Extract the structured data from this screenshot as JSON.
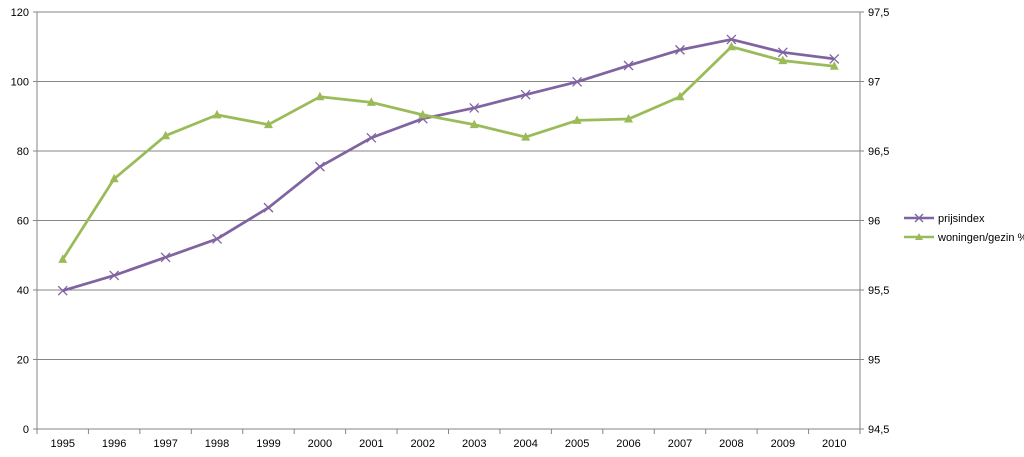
{
  "chart_data": {
    "type": "line",
    "categories": [
      "1995",
      "1996",
      "1997",
      "1998",
      "1999",
      "2000",
      "2001",
      "2002",
      "2003",
      "2004",
      "2005",
      "2006",
      "2007",
      "2008",
      "2009",
      "2010"
    ],
    "left_axis": {
      "ylim": [
        0,
        120
      ],
      "ticks": [
        0,
        20,
        40,
        60,
        80,
        100,
        120
      ],
      "tick_labels": [
        "0",
        "20",
        "40",
        "60",
        "80",
        "100",
        "120"
      ]
    },
    "right_axis": {
      "ylim": [
        94.5,
        97.5
      ],
      "ticks": [
        94.5,
        95,
        95.5,
        96,
        96.5,
        97,
        97.5
      ],
      "tick_labels": [
        "94,5",
        "95",
        "95,5",
        "96",
        "96,5",
        "97",
        "97,5"
      ]
    },
    "grid": "horizontal",
    "legend_position": "right",
    "series": [
      {
        "name": "prijsindex",
        "axis": "left",
        "color": "#8064a2",
        "marker": "x",
        "values": [
          39.8,
          44.2,
          49.4,
          54.7,
          63.7,
          75.5,
          83.8,
          89.3,
          92.4,
          96.2,
          99.9,
          104.6,
          109.1,
          112.1,
          108.4,
          106.5
        ]
      },
      {
        "name": "woningen/gezin %",
        "axis": "right",
        "color": "#9bbb59",
        "marker": "triangle",
        "values": [
          95.72,
          96.3,
          96.61,
          96.76,
          96.69,
          96.89,
          96.85,
          96.76,
          96.69,
          96.6,
          96.72,
          96.73,
          96.89,
          97.25,
          97.15,
          97.11
        ]
      }
    ]
  }
}
